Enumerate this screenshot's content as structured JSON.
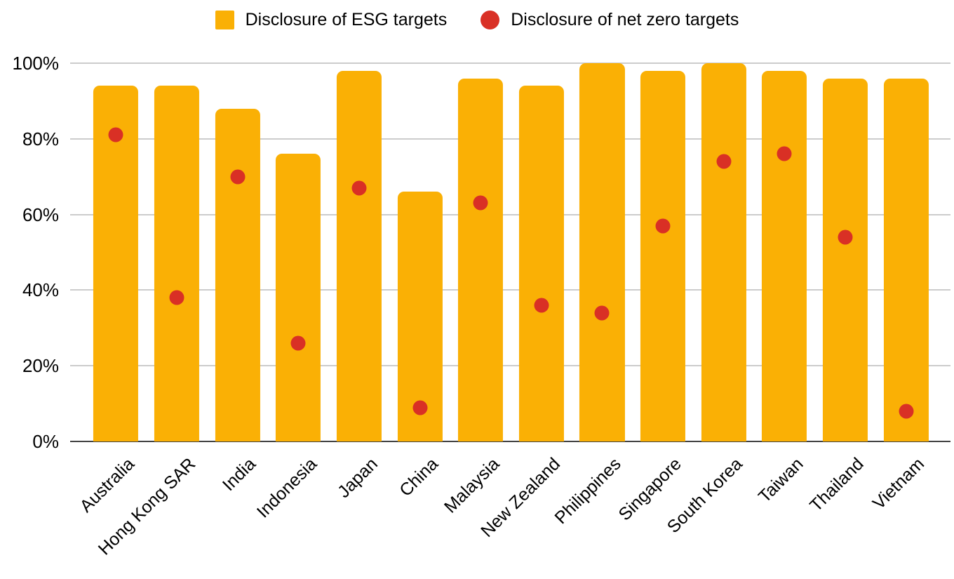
{
  "legend": {
    "items": [
      {
        "label": "Disclosure of ESG targets",
        "shape": "square",
        "color": "#FAB005"
      },
      {
        "label": "Disclosure of net zero targets",
        "shape": "circle",
        "color": "#D93025"
      }
    ],
    "position": "top"
  },
  "colors": {
    "bar": "#FAB005",
    "dot": "#D93025",
    "gridline": "#CCCCCC",
    "axis_line": "#424242",
    "text": "#000000",
    "background": "#FFFFFF"
  },
  "chart_data": {
    "type": "bar",
    "subtype": "combo-bar-with-point-markers",
    "title": "",
    "xlabel": "",
    "ylabel": "",
    "categories": [
      "Australia",
      "Hong Kong SAR",
      "India",
      "Indonesia",
      "Japan",
      "China",
      "Malaysia",
      "New Zealand",
      "Philippines",
      "Singapore",
      "South Korea",
      "Taiwan",
      "Thailand",
      "Vietnam"
    ],
    "series": [
      {
        "name": "Disclosure of ESG targets",
        "type": "bar",
        "color": "#FAB005",
        "values": [
          94,
          94,
          88,
          76,
          98,
          66,
          96,
          94,
          100,
          98,
          100,
          98,
          96,
          96
        ]
      },
      {
        "name": "Disclosure of net zero targets",
        "type": "scatter",
        "color": "#D93025",
        "values": [
          81,
          38,
          70,
          26,
          67,
          9,
          63,
          36,
          34,
          57,
          74,
          76,
          54,
          8
        ]
      }
    ],
    "unit": "%",
    "ylim": [
      0,
      100
    ],
    "yticks": [
      0,
      20,
      40,
      60,
      80,
      100
    ],
    "ytick_labels": [
      "0%",
      "20%",
      "40%",
      "60%",
      "80%",
      "100%"
    ],
    "grid": true,
    "legend_position": "top",
    "x_tick_rotation": -45
  }
}
